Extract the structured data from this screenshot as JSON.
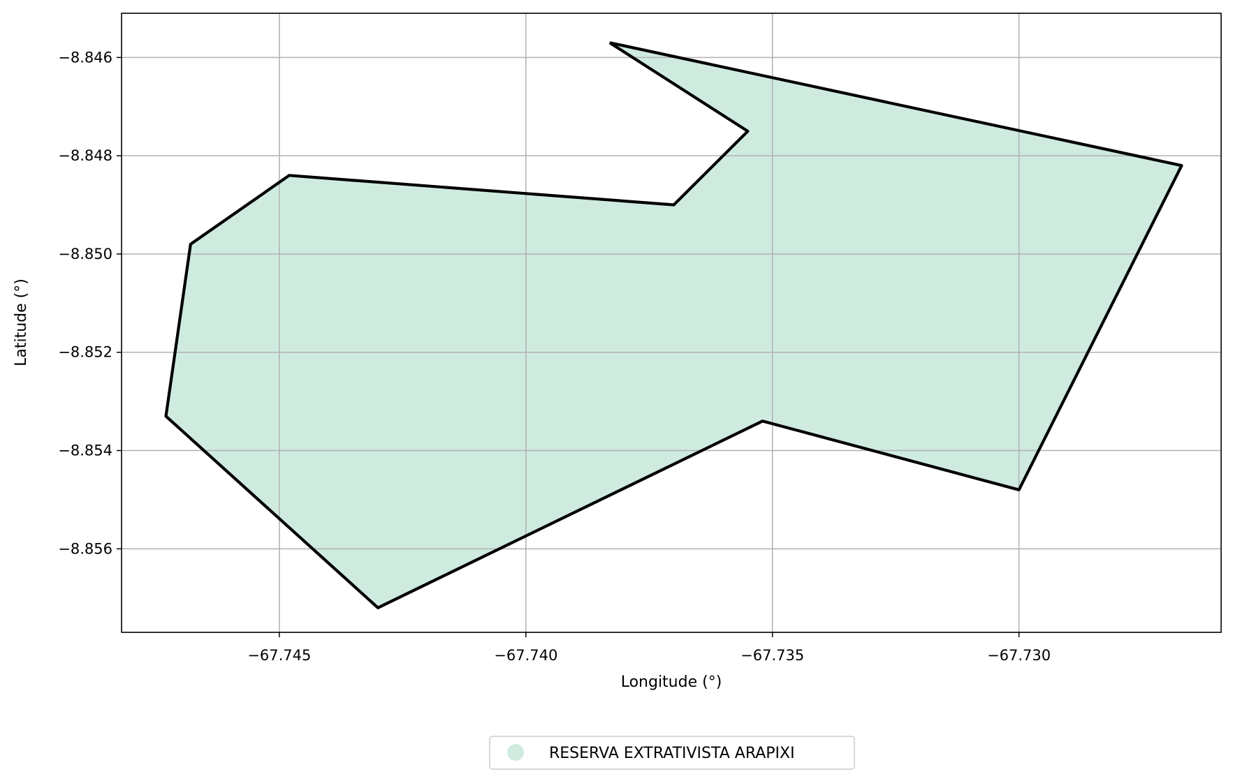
{
  "chart_data": {
    "type": "map",
    "title": "",
    "xlabel": "Longitude (°)",
    "ylabel": "Latitude (°)",
    "xlim": [
      -67.7482,
      -67.7259
    ],
    "ylim": [
      -8.8577,
      -8.8451
    ],
    "x_ticks": [
      -67.745,
      -67.74,
      -67.735,
      -67.73
    ],
    "x_tick_labels": [
      "−67.745",
      "−67.740",
      "−67.735",
      "−67.730"
    ],
    "y_ticks": [
      -8.846,
      -8.848,
      -8.85,
      -8.852,
      -8.854,
      -8.856
    ],
    "y_tick_labels": [
      "−8.846",
      "−8.848",
      "−8.850",
      "−8.852",
      "−8.854",
      "−8.856"
    ],
    "grid": true,
    "legend_placement": "bottom-center",
    "series": [
      {
        "name": "RESERVA EXTRATIVISTA ARAPIXI",
        "fill_color": "#cfebdf",
        "edge_color": "#000000",
        "polygon": [
          [
            -67.7383,
            -8.8457
          ],
          [
            -67.7355,
            -8.8475
          ],
          [
            -67.737,
            -8.849
          ],
          [
            -67.7448,
            -8.8484
          ],
          [
            -67.7468,
            -8.8498
          ],
          [
            -67.7473,
            -8.8533
          ],
          [
            -67.743,
            -8.8572
          ],
          [
            -67.7352,
            -8.8534
          ],
          [
            -67.73,
            -8.8548
          ],
          [
            -67.7267,
            -8.8482
          ],
          [
            -67.7383,
            -8.8457
          ]
        ]
      }
    ]
  }
}
